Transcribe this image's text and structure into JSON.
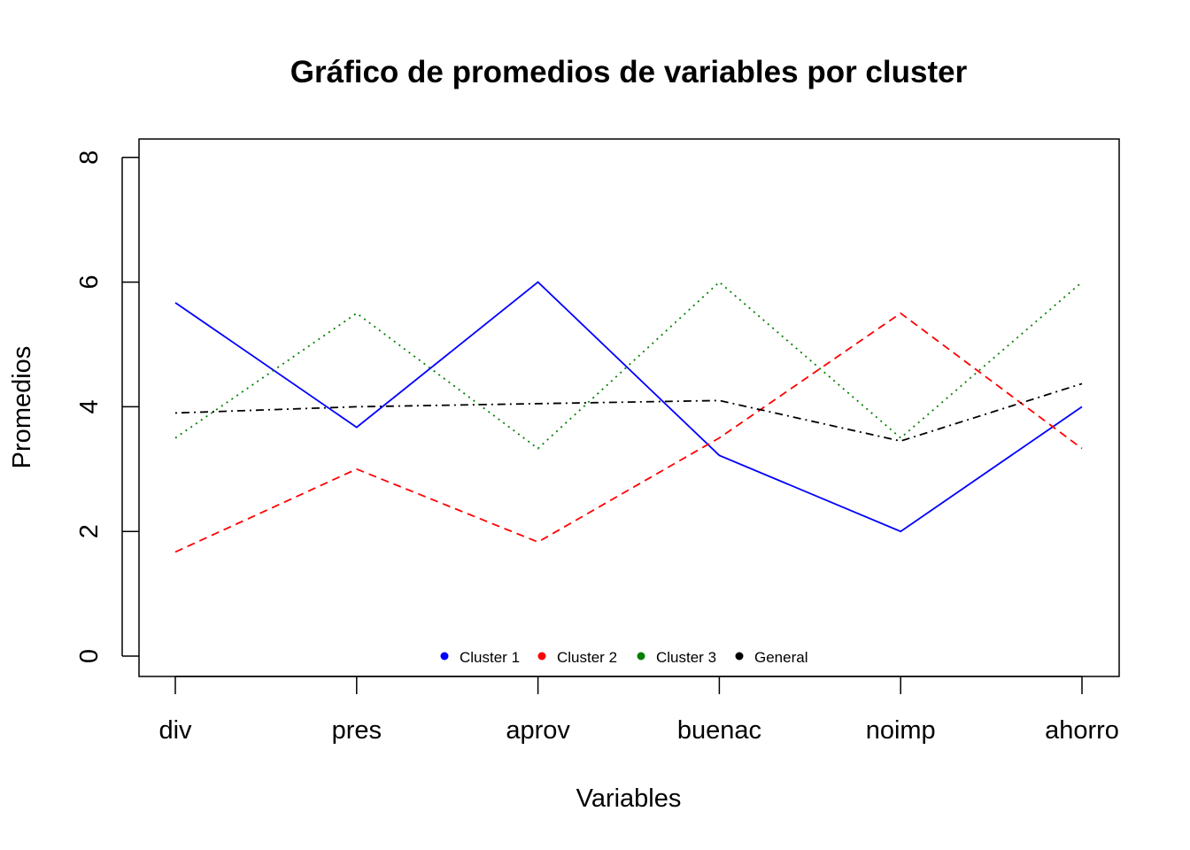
{
  "chart_data": {
    "type": "line",
    "title": "Gráfico de promedios de variables por cluster",
    "xlabel": "Variables",
    "ylabel": "Promedios",
    "categories": [
      "div",
      "pres",
      "aprov",
      "buenac",
      "noimp",
      "ahorro"
    ],
    "ylim": [
      0,
      8
    ],
    "yticks": [
      "0",
      "2",
      "4",
      "6",
      "8"
    ],
    "grid": false,
    "legend_position": "bottom-center",
    "series": [
      {
        "name": "Cluster 1",
        "color": "#0000ff",
        "line_style": "solid",
        "values": [
          5.67,
          3.67,
          6.0,
          3.22,
          2.0,
          4.0
        ]
      },
      {
        "name": "Cluster 2",
        "color": "#ff0000",
        "line_style": "dashed",
        "values": [
          1.67,
          3.0,
          1.83,
          3.5,
          5.5,
          3.33
        ]
      },
      {
        "name": "Cluster 3",
        "color": "#008000",
        "line_style": "dotted",
        "values": [
          3.5,
          5.5,
          3.33,
          6.0,
          3.5,
          6.0
        ]
      },
      {
        "name": "General",
        "color": "#000000",
        "line_style": "dotdash",
        "values": [
          3.9,
          4.0,
          4.05,
          4.1,
          3.45,
          4.37
        ]
      }
    ]
  }
}
